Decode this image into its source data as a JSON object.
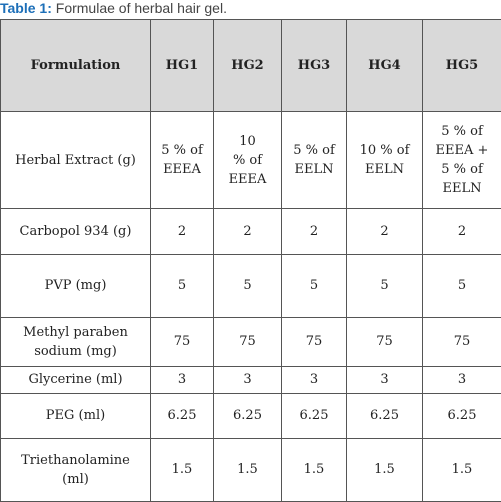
{
  "caption": {
    "label": "Table 1:",
    "text": " Formulae of herbal hair gel."
  },
  "table": {
    "headers": [
      "Formulation",
      "HG1",
      "HG2",
      "HG3",
      "HG4",
      "HG5"
    ],
    "rows": [
      {
        "label": "Herbal Extract (g)",
        "values": [
          "5 % of\nEEEA",
          "10\n% of\nEEEA",
          "5 % of\nEELN",
          "10 % of\nEELN",
          "5 % of\nEEEA +\n5 % of\nEELN"
        ]
      },
      {
        "label": "Carbopol 934 (g)",
        "values": [
          "2",
          "2",
          "2",
          "2",
          "2"
        ]
      },
      {
        "label": "PVP (mg)",
        "values": [
          "5",
          "5",
          "5",
          "5",
          "5"
        ]
      },
      {
        "label": "Methyl paraben\nsodium (mg)",
        "values": [
          "75",
          "75",
          "75",
          "75",
          "75"
        ]
      },
      {
        "label": "Glycerine (ml)",
        "values": [
          "3",
          "3",
          "3",
          "3",
          "3"
        ]
      },
      {
        "label": "PEG (ml)",
        "values": [
          "6.25",
          "6.25",
          "6.25",
          "6.25",
          "6.25"
        ]
      },
      {
        "label": "Triethanolamine\n(ml)",
        "values": [
          "1.5",
          "1.5",
          "1.5",
          "1.5",
          "1.5"
        ]
      }
    ]
  }
}
